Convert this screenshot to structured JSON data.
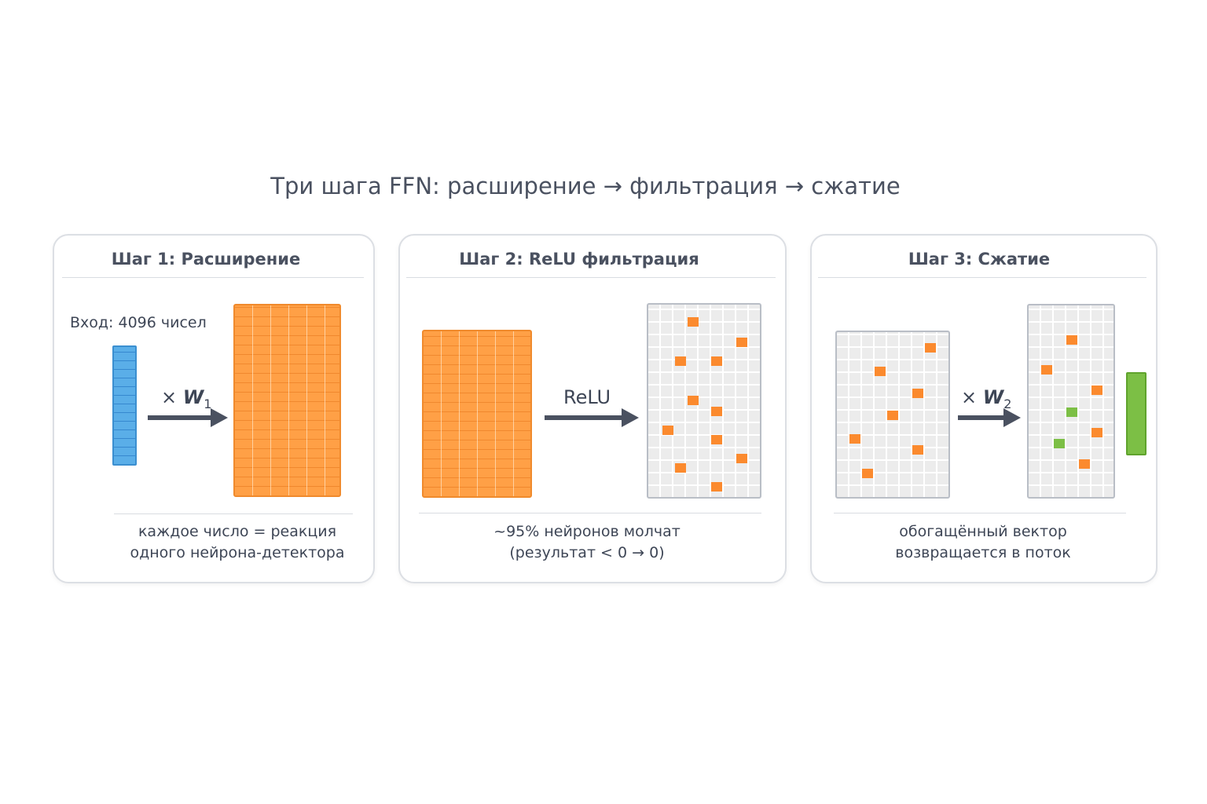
{
  "title": "Три шага FFN: расширение → фильтрация → сжатие",
  "panels": [
    {
      "title": "Шаг 1: Расширение",
      "input_label": "Вход: 4096 чисел",
      "operator": {
        "prefix": "×",
        "symbol": "W",
        "subscript": "1"
      },
      "caption": [
        "каждое число = реакция",
        "одного нейрона-детектора"
      ]
    },
    {
      "title": "Шаг 2: ReLU фильтрация",
      "operator": {
        "symbol": "ReLU"
      },
      "caption": [
        "~95% нейронов молчат",
        "(результат < 0 → 0)"
      ]
    },
    {
      "title": "Шаг 3: Сжатие",
      "operator": {
        "prefix": "×",
        "symbol": "W",
        "subscript": "2"
      },
      "caption": [
        "обогащённый вектор",
        "возвращается в поток"
      ]
    }
  ]
}
